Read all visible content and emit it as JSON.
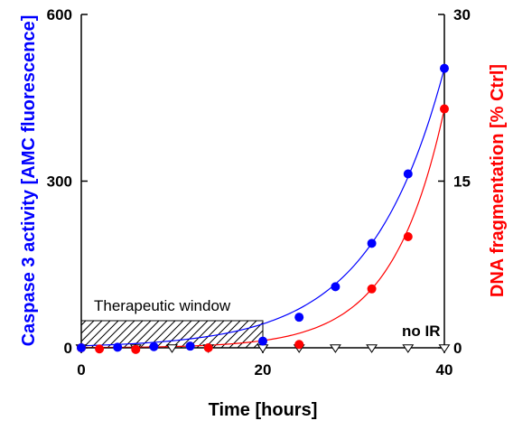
{
  "chart_data": {
    "type": "scatter",
    "title": "",
    "xlabel": "Time [hours]",
    "ylabel_left": "Caspase 3 activity [AMC fluorescence]",
    "ylabel_right": "DNA fragmentation [% Ctrl]",
    "xlim": [
      0,
      40
    ],
    "ylim_left": [
      0,
      600
    ],
    "ylim_right": [
      0,
      30
    ],
    "x_ticks": [
      0,
      20,
      40
    ],
    "y_left_ticks": [
      0,
      300,
      600
    ],
    "y_right_ticks": [
      0,
      15,
      30
    ],
    "grid": false,
    "colors": {
      "caspase": "#0000ff",
      "dna": "#ff0000",
      "no_ir": "#000000"
    },
    "annotations": {
      "therapeutic_window": {
        "label": "Therapeutic window",
        "x_start": 0,
        "x_end": 20
      },
      "no_ir_label": "no IR"
    },
    "series": [
      {
        "axis": "left",
        "color": "#0000ff",
        "marker": "circle",
        "x": [
          0,
          4,
          8,
          12,
          20,
          24,
          28,
          32,
          36,
          40
        ],
        "y": [
          0,
          1,
          2,
          3,
          12,
          55,
          110,
          188,
          313,
          503
        ]
      },
      {
        "axis": "right",
        "color": "#ff0000",
        "marker": "circle",
        "x": [
          0,
          2,
          6,
          14,
          24,
          32,
          36,
          40
        ],
        "y": [
          0,
          -0.1,
          -0.15,
          0,
          0.3,
          5.3,
          10.0,
          21.5
        ]
      },
      {
        "axis": "left",
        "color": "#000000",
        "marker": "triangle-down-open",
        "x": [
          0,
          6,
          10,
          14,
          20,
          24,
          28,
          32,
          36,
          40
        ],
        "y": [
          0,
          0,
          0,
          0,
          0,
          0,
          0,
          0,
          0,
          0
        ]
      }
    ]
  }
}
